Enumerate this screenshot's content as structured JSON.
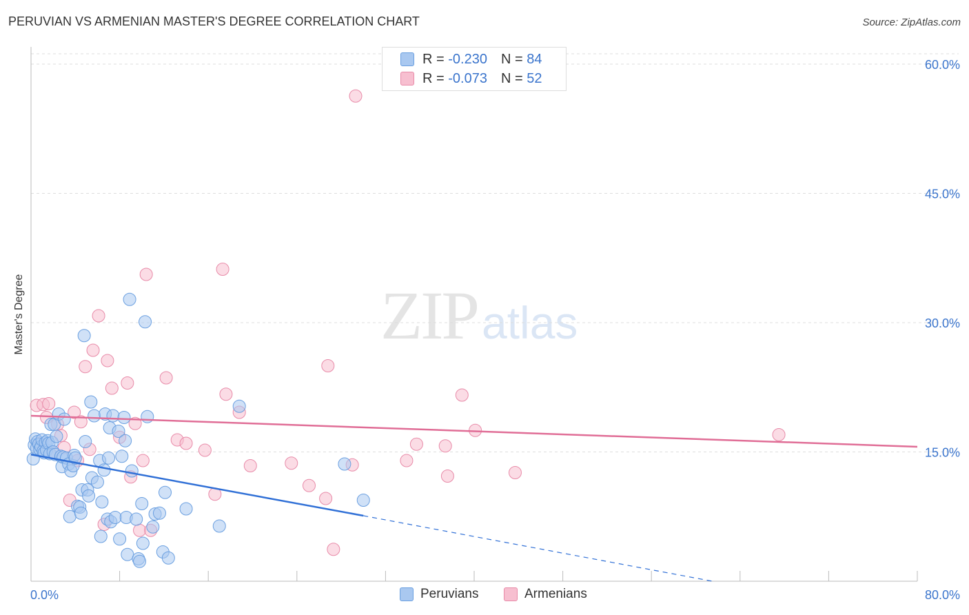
{
  "title": "PERUVIAN VS ARMENIAN MASTER'S DEGREE CORRELATION CHART",
  "source": "Source: ZipAtlas.com",
  "watermark": {
    "zip": "ZIP",
    "atlas": "atlas"
  },
  "legend": {
    "peruvians": {
      "r_label": "R =",
      "r_value": "-0.230",
      "n_label": "N =",
      "n_value": "84"
    },
    "armenians": {
      "r_label": "R =",
      "r_value": "-0.073",
      "n_label": "N =",
      "n_value": "52"
    }
  },
  "chart_data": {
    "type": "scatter",
    "title": "PERUVIAN VS ARMENIAN MASTER'S DEGREE CORRELATION CHART",
    "xlabel": "",
    "ylabel": "Master's Degree",
    "xlim": [
      0,
      80
    ],
    "ylim": [
      0,
      62
    ],
    "x_tick_labels": [
      "0.0%",
      "80.0%"
    ],
    "y_ticks": [
      15,
      30,
      45,
      60
    ],
    "y_tick_labels": [
      "15.0%",
      "30.0%",
      "45.0%",
      "60.0%"
    ],
    "grid": true,
    "series": [
      {
        "name": "Peruvians",
        "color": "#6a9fe0",
        "fill": "#a9c8f0",
        "trend": {
          "x0": 0,
          "y0": 14.7,
          "x1": 30,
          "y1": 7.6,
          "dashed_to_x": 61.5,
          "dashed_to_y": 0
        },
        "points": [
          [
            0.2,
            14.2
          ],
          [
            0.3,
            15.8
          ],
          [
            0.4,
            16.5
          ],
          [
            0.5,
            15.4
          ],
          [
            0.6,
            16.2
          ],
          [
            0.7,
            15.9
          ],
          [
            0.8,
            15.3
          ],
          [
            0.9,
            15.6
          ],
          [
            1.0,
            16.4
          ],
          [
            1.1,
            15.1
          ],
          [
            1.2,
            14.9
          ],
          [
            1.3,
            16.1
          ],
          [
            1.4,
            15.2
          ],
          [
            1.5,
            16.3
          ],
          [
            1.6,
            16.0
          ],
          [
            1.7,
            14.8
          ],
          [
            1.8,
            18.2
          ],
          [
            1.9,
            16.1
          ],
          [
            2.0,
            15.0
          ],
          [
            2.1,
            18.2
          ],
          [
            2.2,
            14.7
          ],
          [
            2.3,
            16.8
          ],
          [
            2.5,
            19.4
          ],
          [
            2.7,
            14.5
          ],
          [
            2.8,
            13.3
          ],
          [
            2.9,
            14.4
          ],
          [
            3.0,
            18.8
          ],
          [
            3.2,
            14.3
          ],
          [
            3.4,
            13.6
          ],
          [
            3.5,
            7.5
          ],
          [
            3.6,
            12.8
          ],
          [
            3.8,
            13.4
          ],
          [
            3.9,
            14.6
          ],
          [
            4.0,
            14.3
          ],
          [
            4.2,
            8.7
          ],
          [
            4.4,
            8.6
          ],
          [
            4.5,
            7.9
          ],
          [
            4.6,
            10.6
          ],
          [
            4.8,
            28.5
          ],
          [
            4.9,
            16.2
          ],
          [
            5.1,
            10.6
          ],
          [
            5.2,
            9.9
          ],
          [
            5.4,
            20.8
          ],
          [
            5.5,
            12.0
          ],
          [
            5.7,
            19.2
          ],
          [
            6.0,
            11.5
          ],
          [
            6.2,
            14.0
          ],
          [
            6.3,
            5.2
          ],
          [
            6.4,
            9.2
          ],
          [
            6.6,
            12.9
          ],
          [
            6.7,
            19.4
          ],
          [
            6.9,
            7.2
          ],
          [
            7.0,
            14.3
          ],
          [
            7.1,
            17.8
          ],
          [
            7.2,
            6.9
          ],
          [
            7.4,
            19.2
          ],
          [
            7.6,
            7.4
          ],
          [
            7.9,
            17.4
          ],
          [
            8.0,
            4.9
          ],
          [
            8.2,
            14.5
          ],
          [
            8.4,
            19.0
          ],
          [
            8.5,
            16.3
          ],
          [
            8.6,
            7.4
          ],
          [
            8.7,
            3.1
          ],
          [
            8.9,
            32.7
          ],
          [
            9.1,
            12.8
          ],
          [
            9.5,
            7.2
          ],
          [
            9.7,
            2.6
          ],
          [
            9.8,
            2.3
          ],
          [
            10.0,
            9.0
          ],
          [
            10.1,
            4.4
          ],
          [
            10.3,
            30.1
          ],
          [
            10.5,
            19.1
          ],
          [
            11.0,
            6.3
          ],
          [
            11.2,
            7.8
          ],
          [
            11.6,
            7.9
          ],
          [
            11.9,
            3.4
          ],
          [
            12.1,
            10.3
          ],
          [
            12.4,
            2.7
          ],
          [
            14.0,
            8.4
          ],
          [
            17.0,
            6.4
          ],
          [
            18.8,
            20.3
          ],
          [
            28.3,
            13.6
          ],
          [
            30.0,
            9.4
          ]
        ]
      },
      {
        "name": "Armenians",
        "color": "#e88aa8",
        "fill": "#f7bfd0",
        "trend": {
          "x0": 0,
          "y0": 19.2,
          "x1": 80,
          "y1": 15.6
        },
        "points": [
          [
            0.5,
            20.4
          ],
          [
            0.8,
            16.0
          ],
          [
            1.1,
            20.5
          ],
          [
            1.4,
            19.0
          ],
          [
            1.6,
            20.6
          ],
          [
            2.0,
            15.0
          ],
          [
            2.4,
            18.2
          ],
          [
            2.7,
            16.9
          ],
          [
            3.0,
            15.5
          ],
          [
            3.5,
            9.4
          ],
          [
            3.9,
            19.6
          ],
          [
            4.2,
            14.0
          ],
          [
            4.5,
            18.5
          ],
          [
            4.9,
            24.9
          ],
          [
            5.3,
            15.3
          ],
          [
            5.6,
            26.8
          ],
          [
            6.1,
            30.8
          ],
          [
            6.6,
            6.6
          ],
          [
            6.9,
            25.6
          ],
          [
            7.3,
            22.4
          ],
          [
            8.0,
            16.7
          ],
          [
            8.7,
            23.0
          ],
          [
            9.0,
            12.1
          ],
          [
            9.4,
            18.3
          ],
          [
            9.8,
            5.9
          ],
          [
            10.1,
            14.0
          ],
          [
            10.4,
            35.6
          ],
          [
            10.8,
            5.9
          ],
          [
            12.2,
            23.6
          ],
          [
            13.2,
            16.4
          ],
          [
            14.0,
            16.0
          ],
          [
            15.7,
            15.2
          ],
          [
            16.6,
            10.1
          ],
          [
            17.3,
            36.2
          ],
          [
            17.6,
            21.7
          ],
          [
            18.8,
            19.6
          ],
          [
            19.8,
            13.4
          ],
          [
            23.5,
            13.7
          ],
          [
            25.1,
            11.1
          ],
          [
            26.6,
            9.6
          ],
          [
            26.8,
            25.0
          ],
          [
            27.3,
            3.7
          ],
          [
            29.0,
            13.5
          ],
          [
            29.3,
            56.3
          ],
          [
            33.9,
            14.0
          ],
          [
            34.8,
            15.9
          ],
          [
            37.4,
            15.7
          ],
          [
            37.6,
            12.2
          ],
          [
            38.9,
            21.6
          ],
          [
            40.1,
            17.5
          ],
          [
            43.7,
            12.6
          ],
          [
            67.5,
            17.0
          ]
        ]
      }
    ]
  }
}
